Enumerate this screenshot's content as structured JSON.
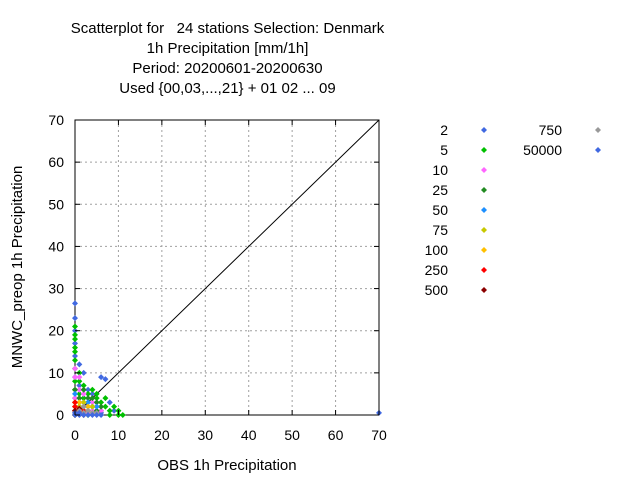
{
  "chart_data": {
    "type": "scatter",
    "title_lines": [
      "Scatterplot for   24 stations Selection: Denmark",
      "1h Precipitation [mm/1h]",
      "Period: 20200601-20200630",
      "Used {00,03,...,21} + 01 02 ... 09"
    ],
    "xlabel": "OBS 1h Precipitation",
    "ylabel": "MNWC_preop 1h Precipitation",
    "xlim": [
      0,
      70
    ],
    "ylim": [
      0,
      70
    ],
    "xticks": [
      "0",
      "10",
      "20",
      "30",
      "40",
      "50",
      "60",
      "70"
    ],
    "yticks": [
      "0",
      "10",
      "20",
      "30",
      "40",
      "50",
      "60",
      "70"
    ],
    "grid": true,
    "diagonal": true,
    "legend_placement": "right",
    "series": [
      {
        "name": "2",
        "color": "#4169e1",
        "points": [
          [
            0,
            26.5
          ],
          [
            0,
            23
          ],
          [
            0,
            20
          ],
          [
            0,
            17
          ],
          [
            0,
            14
          ],
          [
            1,
            12
          ],
          [
            2,
            10
          ],
          [
            0,
            9
          ],
          [
            1,
            7
          ],
          [
            3,
            6
          ],
          [
            4,
            5
          ],
          [
            6,
            9
          ],
          [
            7,
            8.5
          ],
          [
            8,
            3
          ],
          [
            5,
            2
          ],
          [
            9,
            1
          ],
          [
            2,
            4
          ],
          [
            1,
            1
          ],
          [
            3,
            1
          ],
          [
            4,
            1
          ],
          [
            6,
            0.5
          ],
          [
            70,
            0.5
          ]
        ]
      },
      {
        "name": "5",
        "color": "#00c000",
        "points": [
          [
            0,
            21
          ],
          [
            0,
            19
          ],
          [
            0,
            18
          ],
          [
            0,
            16
          ],
          [
            0,
            15
          ],
          [
            0,
            13
          ],
          [
            0,
            11
          ],
          [
            1,
            10
          ],
          [
            0,
            8
          ],
          [
            0,
            6
          ],
          [
            1,
            5
          ],
          [
            2,
            4
          ],
          [
            3,
            3
          ],
          [
            4,
            2
          ],
          [
            5,
            4
          ],
          [
            6,
            3
          ],
          [
            7,
            2
          ],
          [
            8,
            1
          ],
          [
            9,
            2
          ],
          [
            10,
            1
          ],
          [
            11,
            0
          ],
          [
            1,
            8
          ],
          [
            2,
            7
          ],
          [
            3,
            5
          ],
          [
            4,
            6
          ],
          [
            5,
            5
          ],
          [
            6,
            1
          ],
          [
            7,
            4
          ],
          [
            0,
            4
          ],
          [
            0,
            3
          ],
          [
            1,
            2
          ],
          [
            2,
            1
          ],
          [
            0,
            0
          ],
          [
            3,
            0
          ],
          [
            8,
            0
          ],
          [
            10,
            0
          ]
        ]
      },
      {
        "name": "10",
        "color": "#ff66ff",
        "points": [
          [
            0,
            11
          ],
          [
            0,
            9
          ],
          [
            1,
            9
          ],
          [
            1,
            6
          ],
          [
            2,
            5
          ],
          [
            0,
            4
          ],
          [
            1,
            3
          ],
          [
            2,
            2
          ],
          [
            3,
            2
          ],
          [
            4,
            1
          ],
          [
            5,
            1
          ],
          [
            6,
            1
          ],
          [
            1,
            1
          ],
          [
            2,
            0.5
          ],
          [
            3,
            0.5
          ],
          [
            4,
            3
          ]
        ]
      },
      {
        "name": "25",
        "color": "#228b22",
        "points": [
          [
            0,
            6
          ],
          [
            1,
            4
          ],
          [
            2,
            3
          ],
          [
            3,
            2
          ],
          [
            4,
            4
          ],
          [
            5,
            3
          ],
          [
            6,
            2
          ],
          [
            2,
            6
          ],
          [
            1,
            2
          ],
          [
            0,
            1
          ],
          [
            3,
            4
          ],
          [
            5,
            1
          ]
        ]
      },
      {
        "name": "50",
        "color": "#1e90ff",
        "points": [
          [
            0,
            5
          ],
          [
            1,
            3
          ],
          [
            2,
            2
          ],
          [
            3,
            3
          ],
          [
            4,
            2
          ],
          [
            5,
            2
          ],
          [
            1,
            0.5
          ],
          [
            0,
            2
          ]
        ]
      },
      {
        "name": "75",
        "color": "#c8c800",
        "points": [
          [
            0,
            3
          ],
          [
            1,
            2
          ],
          [
            2,
            3
          ],
          [
            3,
            1
          ],
          [
            4,
            2
          ],
          [
            2,
            1
          ]
        ]
      },
      {
        "name": "100",
        "color": "#ffc000",
        "points": [
          [
            0,
            2
          ],
          [
            1,
            1
          ],
          [
            2,
            2
          ],
          [
            3,
            2
          ],
          [
            1,
            3
          ]
        ]
      },
      {
        "name": "250",
        "color": "#ff0000",
        "points": [
          [
            0,
            3
          ],
          [
            0,
            2
          ],
          [
            1,
            1
          ],
          [
            0,
            1
          ],
          [
            2,
            1
          ]
        ]
      },
      {
        "name": "500",
        "color": "#8b0000",
        "points": [
          [
            0,
            1
          ],
          [
            1,
            0.5
          ],
          [
            0,
            0
          ],
          [
            2,
            0
          ],
          [
            1,
            1.5
          ]
        ]
      },
      {
        "name": "750",
        "color": "#999999",
        "points": [
          [
            1,
            1
          ],
          [
            2,
            0.5
          ],
          [
            3,
            1
          ],
          [
            4,
            0.5
          ],
          [
            5,
            0.5
          ],
          [
            2,
            2
          ],
          [
            0,
            0.5
          ]
        ]
      },
      {
        "name": "50000",
        "color": "#4169e1",
        "points": [
          [
            0,
            0
          ],
          [
            1,
            0
          ],
          [
            2,
            0
          ],
          [
            3,
            0
          ],
          [
            4,
            0
          ],
          [
            5,
            0
          ],
          [
            6,
            0
          ],
          [
            0,
            0.5
          ],
          [
            1,
            0.5
          ]
        ]
      }
    ]
  }
}
